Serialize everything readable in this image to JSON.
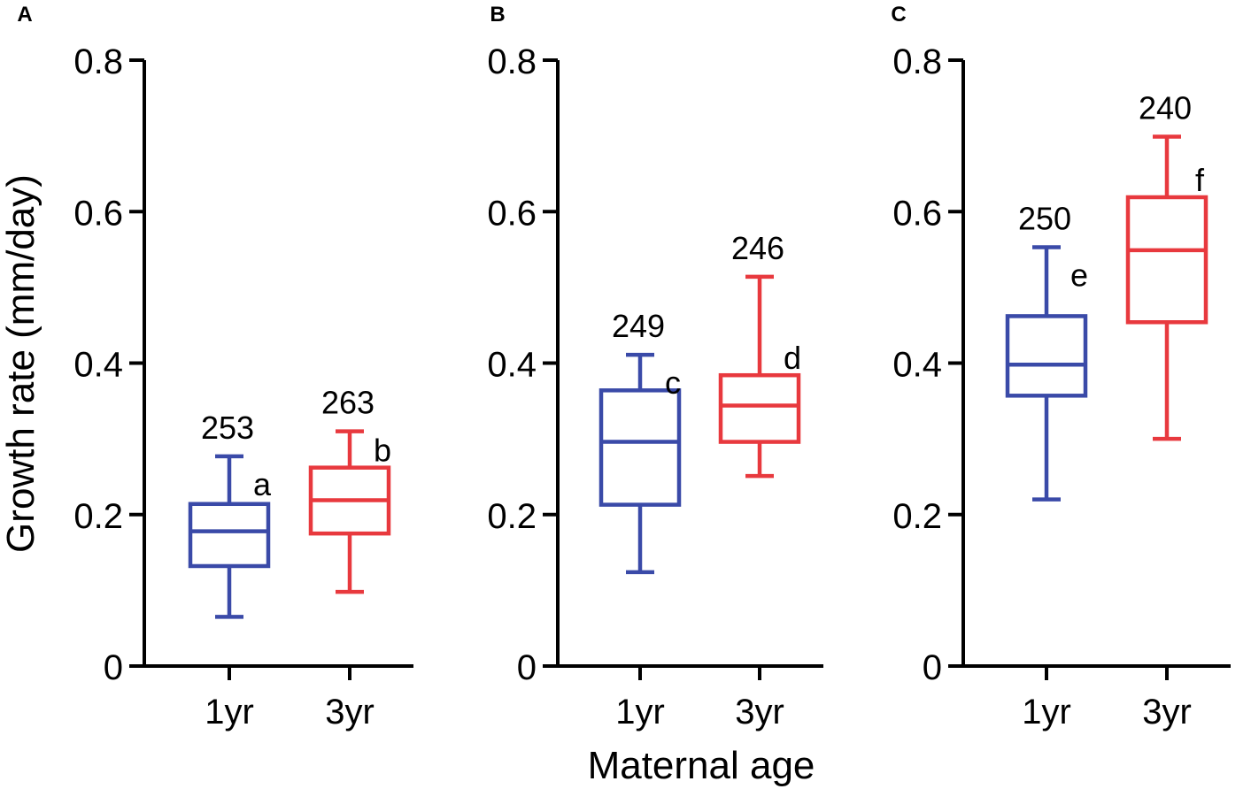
{
  "chart_data": {
    "type": "boxplot",
    "ylabel": "Growth rate (mm/day)",
    "xlabel": "Maternal age",
    "ylim": [
      0,
      0.8
    ],
    "yticks": [
      "0",
      "0.2",
      "0.4",
      "0.6",
      "0.8"
    ],
    "grid": false,
    "colors": {
      "1yr": "#3a4aa8",
      "3yr": "#e8393e"
    },
    "panels": [
      {
        "panel_label": "A",
        "categories": [
          "1yr",
          "3yr"
        ],
        "boxes": [
          {
            "category": "1yr",
            "min": 0.065,
            "q1": 0.132,
            "median": 0.178,
            "q3": 0.214,
            "max": 0.277,
            "n": "253",
            "letter": "a"
          },
          {
            "category": "3yr",
            "min": 0.098,
            "q1": 0.175,
            "median": 0.219,
            "q3": 0.262,
            "max": 0.31,
            "n": "263",
            "letter": "b"
          }
        ]
      },
      {
        "panel_label": "B",
        "categories": [
          "1yr",
          "3yr"
        ],
        "boxes": [
          {
            "category": "1yr",
            "min": 0.124,
            "q1": 0.213,
            "median": 0.296,
            "q3": 0.364,
            "max": 0.411,
            "n": "249",
            "letter": "c"
          },
          {
            "category": "3yr",
            "min": 0.251,
            "q1": 0.296,
            "median": 0.344,
            "q3": 0.384,
            "max": 0.514,
            "n": "246",
            "letter": "d"
          }
        ]
      },
      {
        "panel_label": "C",
        "categories": [
          "1yr",
          "3yr"
        ],
        "boxes": [
          {
            "category": "1yr",
            "min": 0.22,
            "q1": 0.357,
            "median": 0.398,
            "q3": 0.462,
            "max": 0.553,
            "n": "250",
            "letter": "e"
          },
          {
            "category": "3yr",
            "min": 0.3,
            "q1": 0.454,
            "median": 0.549,
            "q3": 0.619,
            "max": 0.699,
            "n": "240",
            "letter": "f"
          }
        ]
      }
    ]
  }
}
